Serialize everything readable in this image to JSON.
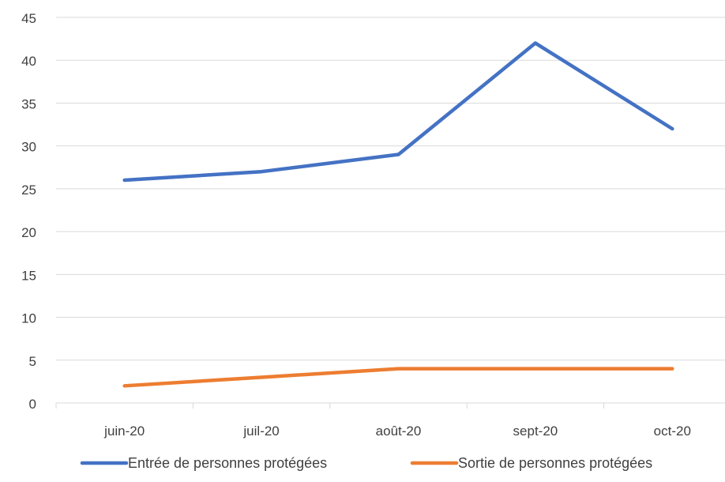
{
  "chart_data": {
    "type": "line",
    "title": "",
    "xlabel": "",
    "ylabel": "",
    "categories": [
      "juin-20",
      "juil-20",
      "août-20",
      "sept-20",
      "oct-20"
    ],
    "ylim": [
      0,
      45
    ],
    "yticks": [
      0,
      5,
      10,
      15,
      20,
      25,
      30,
      35,
      40,
      45
    ],
    "grid": true,
    "legend_position": "bottom",
    "series": [
      {
        "name": "Entrée de personnes protégées",
        "values": [
          26,
          27,
          29,
          42,
          32
        ],
        "color": "#4472C4"
      },
      {
        "name": "Sortie de personnes protégées",
        "values": [
          2,
          3,
          4,
          4,
          4
        ],
        "color": "#ED7D31"
      }
    ]
  }
}
